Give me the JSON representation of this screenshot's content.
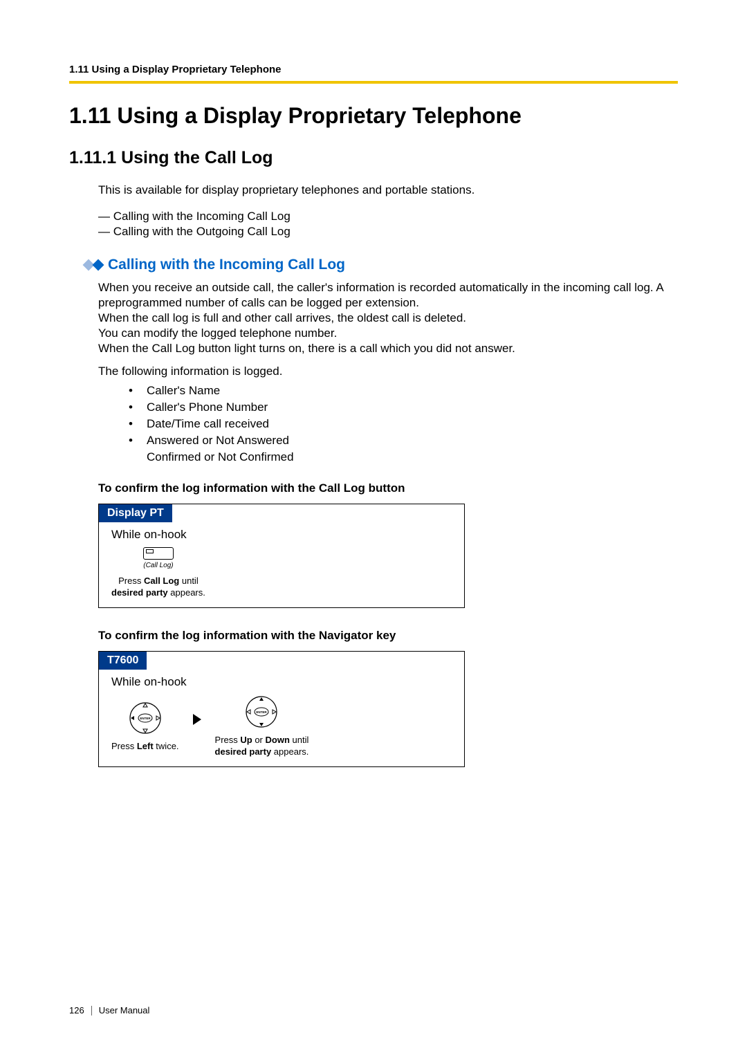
{
  "colors": {
    "accent_yellow": "#f0c400",
    "heading_blue": "#0065c7",
    "tab_bg": "#003a8a",
    "diamond_left": "#9cb9e0",
    "diamond_right": "#0065c7"
  },
  "header": {
    "running_head": "1.11 Using a Display Proprietary Telephone"
  },
  "h1": "1.11   Using a Display Proprietary Telephone",
  "h2": "1.11.1   Using the Call Log",
  "intro": "This is available for display proprietary telephones and portable stations.",
  "dash_items": [
    "Calling with the Incoming Call Log",
    "Calling with the Outgoing Call Log"
  ],
  "h3": "Calling with the Incoming Call Log",
  "body_lines": [
    "When you receive an outside call, the caller's information is recorded automatically in the incoming call log. A preprogrammed number of calls can be logged per extension.",
    "When the call log is full and other call arrives, the oldest call is deleted.",
    "You can modify the logged telephone number.",
    "When the Call Log button light turns on, there is a call which you did not answer."
  ],
  "logged_intro": "The following information is logged.",
  "bullets": [
    "Caller's Name",
    "Caller's Phone Number",
    "Date/Time call received",
    "Answered or Not Answered\nConfirmed or Not Confirmed"
  ],
  "proc1": {
    "heading": "To confirm the log information with the Call Log button",
    "tab": "Display PT",
    "on_hook": "While on-hook",
    "btn_label": "(Call Log)",
    "caption_pre": "Press ",
    "caption_b1": "Call Log",
    "caption_mid": " until",
    "caption_b2": "desired party",
    "caption_post": " appears."
  },
  "proc2": {
    "heading": "To confirm the log information with the Navigator key",
    "tab": "T7600",
    "on_hook": "While on-hook",
    "step1_pre": "Press ",
    "step1_b": "Left",
    "step1_post": " twice.",
    "step2_pre": "Press ",
    "step2_b1": "Up",
    "step2_mid1": " or ",
    "step2_b2": "Down",
    "step2_mid2": " until",
    "step2_b3": "desired party",
    "step2_post": " appears."
  },
  "footer": {
    "page": "126",
    "label": "User Manual"
  }
}
